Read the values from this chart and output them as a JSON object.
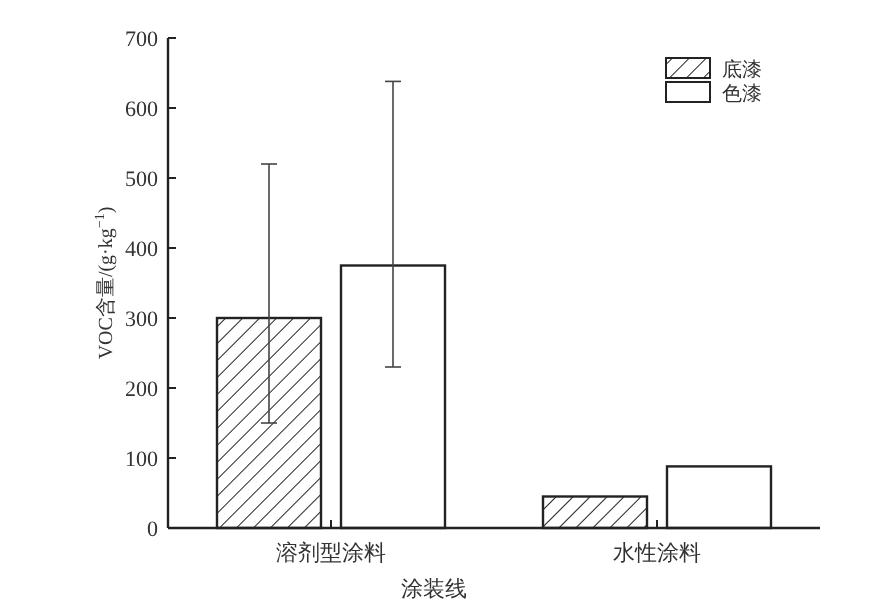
{
  "chart_data": {
    "type": "bar",
    "xlabel": "涂装线",
    "ylabel": "VOC含量/(g·kg$^{−1}$)",
    "categories": [
      "溶剂型涂料",
      "水性涂料"
    ],
    "series": [
      {
        "name": "底漆",
        "color": "#222222",
        "values": [
          300,
          45
        ],
        "errors": [
          [
            150,
            520
          ],
          null
        ]
      },
      {
        "name": "色漆",
        "color": "#ffffff",
        "values": [
          375,
          88
        ],
        "errors": [
          [
            230,
            638
          ],
          null
        ]
      }
    ],
    "ylim": [
      0,
      700
    ],
    "yticks": [
      0,
      100,
      200,
      300,
      400,
      500,
      600,
      700
    ],
    "grid": false,
    "legend": "top right"
  }
}
